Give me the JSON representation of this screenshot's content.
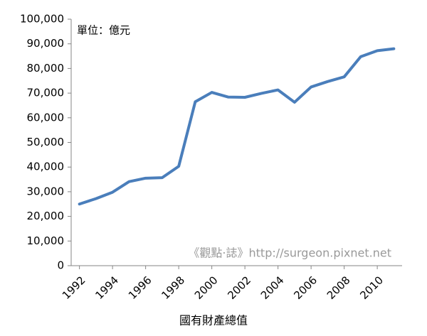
{
  "chart_data": {
    "type": "line",
    "x_label": "國有財產總值",
    "annotations": [
      "單位：億元",
      "《觀點·誌》http://surgeon.pixnet.net"
    ],
    "x": [
      1992,
      1993,
      1994,
      1995,
      1996,
      1997,
      1998,
      1999,
      2000,
      2001,
      2002,
      2003,
      2004,
      2005,
      2006,
      2007,
      2008,
      2009,
      2010,
      2011
    ],
    "series": [
      {
        "color": "#4a7ebb",
        "values": [
          25000,
          27200,
          29800,
          34100,
          35500,
          35700,
          40300,
          66500,
          70300,
          68400,
          68300,
          69900,
          71300,
          66300,
          72500,
          74700,
          76600,
          84800,
          87200,
          88000
        ]
      }
    ],
    "xlim": [
      1991.5,
      2011.5
    ],
    "xticks": [
      1992,
      1994,
      1996,
      1998,
      2000,
      2002,
      2004,
      2006,
      2008,
      2010
    ],
    "ylim": [
      0,
      100000
    ],
    "yticks": [
      0,
      {
        "value": 10000,
        "label": "10,000"
      },
      {
        "value": 20000,
        "label": "20,000"
      },
      {
        "value": 30000,
        "label": "30,000"
      },
      {
        "value": 40000,
        "label": "40,000"
      },
      {
        "value": 50000,
        "label": "50,000"
      },
      {
        "value": 60000,
        "label": "60,000"
      },
      {
        "value": 70000,
        "label": "70,000"
      },
      {
        "value": 80000,
        "label": "80,000"
      },
      {
        "value": 90000,
        "label": "90,000"
      },
      {
        "value": 100000,
        "label": "100,000"
      }
    ],
    "grid": false
  }
}
